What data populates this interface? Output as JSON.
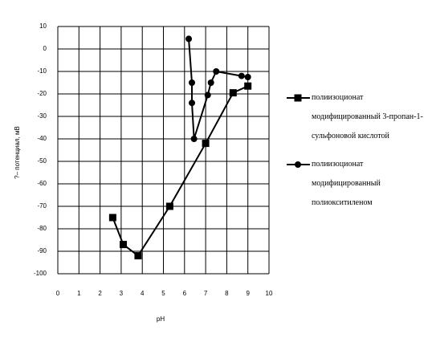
{
  "chart_data": {
    "type": "line",
    "xlabel": "pH",
    "ylabel": "?– потенциал, мВ",
    "xlim": [
      0,
      10
    ],
    "xticks": [
      0,
      1,
      2,
      3,
      4,
      5,
      6,
      7,
      8,
      9,
      10
    ],
    "ylim": [
      -100,
      10
    ],
    "yticks": [
      10,
      0,
      -10,
      -20,
      -30,
      -40,
      -50,
      -60,
      -70,
      -80,
      -90,
      -100
    ],
    "grid": true,
    "legend": "right",
    "series": [
      {
        "name": "полиизоционат модифицированный 3-пропан-1-сульфоновой кислотой",
        "color": "#000000",
        "marker": "square",
        "x": [
          2.6,
          3.1,
          3.8,
          5.3,
          7.0,
          8.3,
          9.0
        ],
        "values": [
          -75,
          -87,
          -92,
          -70,
          -42,
          -19.5,
          -16.5
        ]
      },
      {
        "name": "полиизоционат модифицированный полиокситиленом",
        "color": "#000000",
        "marker": "circle",
        "x": [
          6.2,
          6.35,
          6.35,
          6.45,
          7.1,
          7.25,
          7.5,
          8.7,
          9.0
        ],
        "values": [
          4.5,
          -15,
          -24,
          -40,
          -20.5,
          -15,
          -10,
          -12,
          -12.5
        ]
      }
    ]
  }
}
